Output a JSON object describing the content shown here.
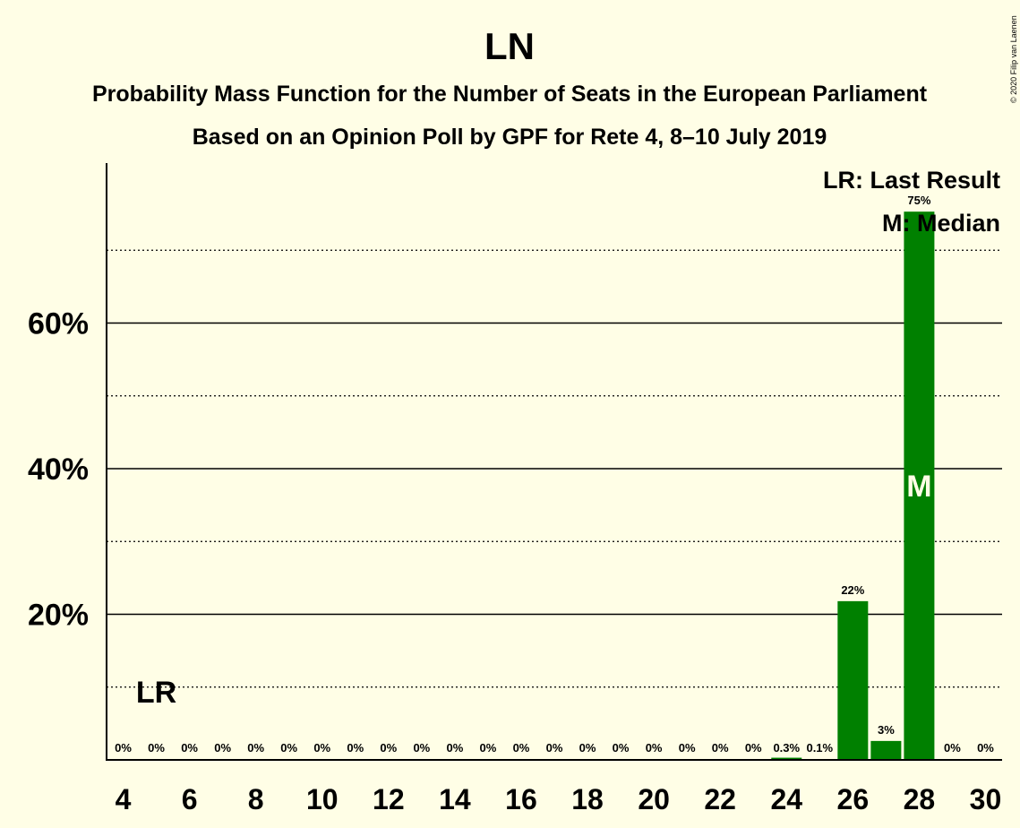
{
  "chart_data": {
    "type": "bar",
    "title": "LN",
    "subtitle": "Probability Mass Function for the Number of Seats in the European Parliament",
    "subtitle2": "Based on an Opinion Poll by GPF for Rete 4, 8–10 July 2019",
    "copyright": "© 2020 Filip van Laenen",
    "x": [
      4,
      5,
      6,
      7,
      8,
      9,
      10,
      11,
      12,
      13,
      14,
      15,
      16,
      17,
      18,
      19,
      20,
      21,
      22,
      23,
      24,
      25,
      26,
      27,
      28,
      29,
      30
    ],
    "values": [
      0,
      0,
      0,
      0,
      0,
      0,
      0,
      0,
      0,
      0,
      0,
      0,
      0,
      0,
      0,
      0,
      0,
      0,
      0,
      0,
      0.3,
      0.1,
      21.8,
      2.6,
      75.3,
      0,
      0
    ],
    "value_labels": [
      "0%",
      "0%",
      "0%",
      "0%",
      "0%",
      "0%",
      "0%",
      "0%",
      "0%",
      "0%",
      "0%",
      "0%",
      "0%",
      "0%",
      "0%",
      "0%",
      "0%",
      "0%",
      "0%",
      "0%",
      "0.3%",
      "0.1%",
      "22%",
      "3%",
      "75%",
      "0%",
      "0%"
    ],
    "xticks": [
      4,
      6,
      8,
      10,
      12,
      14,
      16,
      18,
      20,
      22,
      24,
      26,
      28,
      30
    ],
    "yticks": [
      {
        "value": 20,
        "label": "20%"
      },
      {
        "value": 40,
        "label": "40%"
      },
      {
        "value": 60,
        "label": "60%"
      }
    ],
    "y_dotted_gridlines": [
      10,
      30,
      50,
      70
    ],
    "ylim": [
      0,
      82
    ],
    "last_result": {
      "seat": 5,
      "label": "LR"
    },
    "median": {
      "seat": 28,
      "label": "M"
    },
    "legend": {
      "lines": [
        "LR: Last Result",
        "M: Median"
      ],
      "position": "top-right"
    },
    "bar_color": "#008000",
    "background": "#FFFEE6"
  }
}
